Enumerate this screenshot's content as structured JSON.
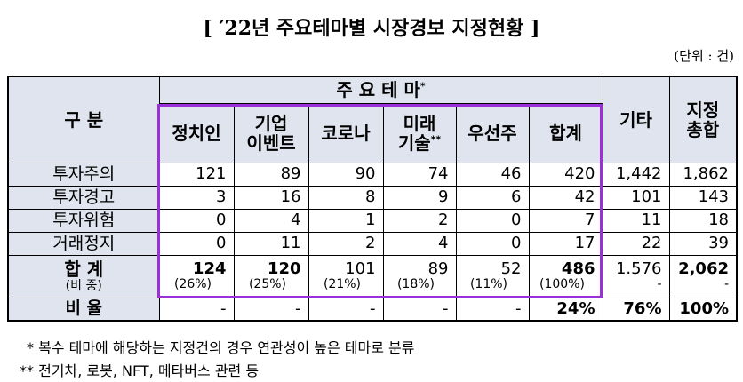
{
  "title": "[ ′22년 주요테마별 시장경보 지정현황 ]",
  "unit": "(단위 : 건)",
  "table": {
    "header": {
      "category": "구 분",
      "theme_group": {
        "label": "주 요 테 마",
        "mark": "*"
      },
      "themes": [
        {
          "lines": [
            "정치인"
          ]
        },
        {
          "lines": [
            "기업",
            "이벤트"
          ]
        },
        {
          "lines": [
            "코로나"
          ]
        },
        {
          "lines": [
            "미래",
            "기술"
          ],
          "mark": "**"
        },
        {
          "lines": [
            "우선주"
          ]
        },
        {
          "lines": [
            "합계"
          ]
        }
      ],
      "other": "기타",
      "total": [
        "지정",
        "총합"
      ]
    },
    "rows": [
      {
        "label": "투자주의",
        "cells": [
          "121",
          "89",
          "90",
          "74",
          "46",
          "420",
          "1,442",
          "1,862"
        ]
      },
      {
        "label": "투자경고",
        "cells": [
          "3",
          "16",
          "8",
          "9",
          "6",
          "42",
          "101",
          "143"
        ]
      },
      {
        "label": "투자위험",
        "cells": [
          "0",
          "4",
          "1",
          "2",
          "0",
          "7",
          "11",
          "18"
        ]
      },
      {
        "label": "거래정지",
        "cells": [
          "0",
          "11",
          "2",
          "4",
          "0",
          "17",
          "22",
          "39"
        ]
      }
    ],
    "total_row": {
      "label": "합 계",
      "sublabel": "(비 중)",
      "cells": [
        "124",
        "120",
        "101",
        "89",
        "52",
        "486",
        "1.576",
        "2,062"
      ],
      "shares": [
        "(26%)",
        "(25%)",
        "(21%)",
        "(18%)",
        "(11%)",
        "(100%)",
        "-",
        "-"
      ]
    },
    "ratio_row": {
      "label": "비 율",
      "cells": [
        "-",
        "-",
        "-",
        "-",
        "-",
        "24%",
        "76%",
        "100%"
      ]
    }
  },
  "footnotes": [
    "* 복수 테마에 해당하는 지정건의 경우 연관성이 높은 테마로 분류",
    "** 전기차, 로봇, NFT, 메타버스 관련 등"
  ]
}
